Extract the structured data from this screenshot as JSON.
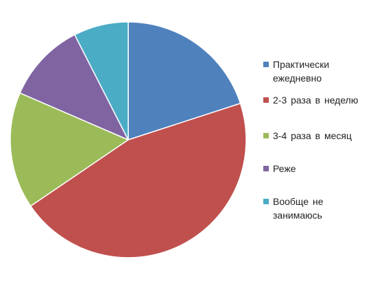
{
  "chart_data": {
    "type": "pie",
    "title": "",
    "categories": [
      "Практически ежедневно",
      "2-3 раза в неделю",
      "3-4 раза в месяц",
      "Реже",
      "Вообще не занимаюсь"
    ],
    "values": [
      20,
      45.5,
      16,
      11,
      7.5
    ],
    "unit": "%",
    "start_angle_deg": 0,
    "direction": "clockwise",
    "legend_position": "right",
    "colors": [
      "#4F81BD",
      "#C0504D",
      "#9BBB59",
      "#8064A2",
      "#4BACC6"
    ]
  },
  "legend": {
    "items": [
      {
        "label_lines": [
          "Практически",
          "ежедневно"
        ],
        "color": "#4F81BD"
      },
      {
        "label_lines": [
          "2-3 раза в неделю"
        ],
        "color": "#C0504D"
      },
      {
        "label_lines": [
          "3-4 раза в месяц"
        ],
        "color": "#9BBB59"
      },
      {
        "label_lines": [
          "Реже"
        ],
        "color": "#8064A2"
      },
      {
        "label_lines": [
          "Вообще не",
          "занимаюсь"
        ],
        "color": "#4BACC6"
      }
    ]
  }
}
